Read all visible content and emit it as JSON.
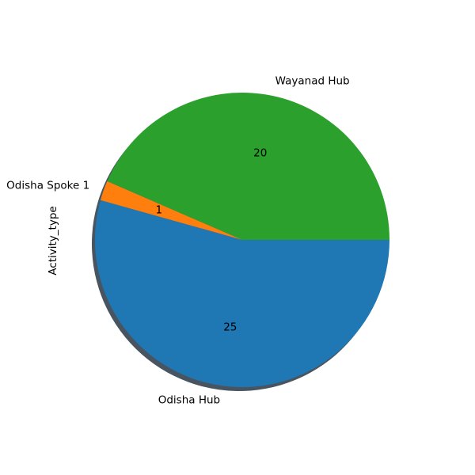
{
  "chart_data": {
    "type": "pie",
    "categories": [
      "Odisha Hub",
      "Odisha Spoke 1",
      "Wayanad Hub"
    ],
    "values": [
      25,
      1,
      20
    ],
    "value_labels": [
      "25",
      "1",
      "20"
    ],
    "colors": [
      "#1f77b4",
      "#ff7f0e",
      "#2ca02c"
    ],
    "ylabel": "Activity_type",
    "shadow": true,
    "start_angle_degrees": 0,
    "direction": "clockwise"
  }
}
